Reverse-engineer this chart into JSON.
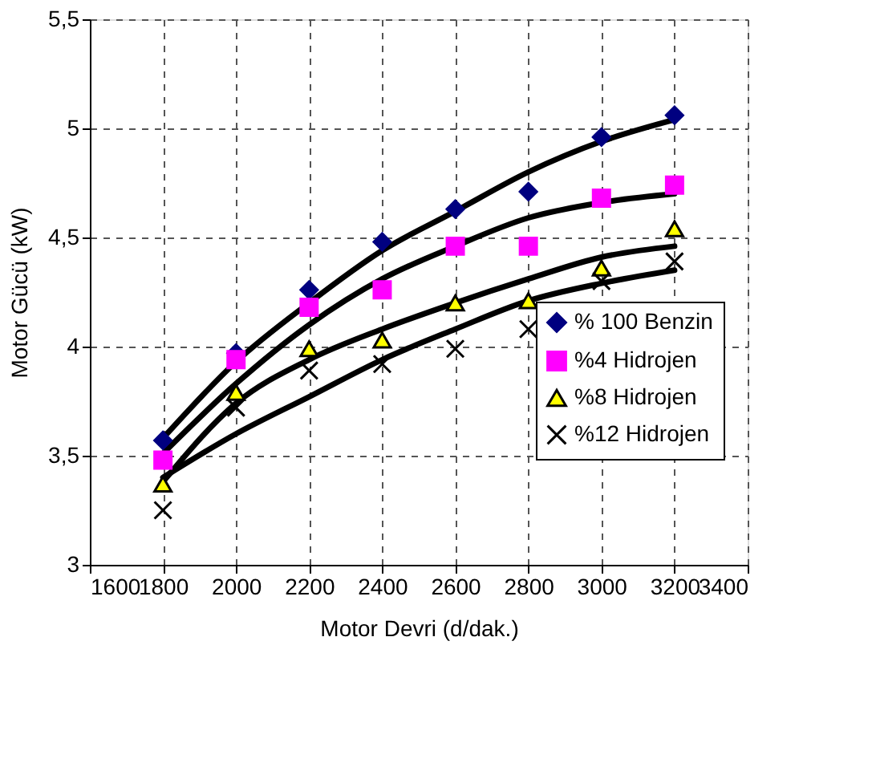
{
  "chart_data": {
    "type": "scatter",
    "xlabel": "Motor Devri (d/dak.)",
    "ylabel": "Motor Gücü (kW)",
    "x": [
      1800,
      2000,
      2200,
      2400,
      2600,
      2800,
      3000,
      3200
    ],
    "series": [
      {
        "name": "% 100 Benzin",
        "color": "#000080",
        "marker": "diamond",
        "values": [
          3.57,
          3.97,
          4.26,
          4.48,
          4.63,
          4.71,
          4.96,
          5.06
        ]
      },
      {
        "name": "%4 Hidrojen",
        "color": "#ff00ff",
        "marker": "square",
        "values": [
          3.48,
          3.94,
          4.18,
          4.26,
          4.46,
          4.46,
          4.68,
          4.74
        ]
      },
      {
        "name": "%8 Hidrojen",
        "color": "#ffff00",
        "marker": "triangle",
        "values": [
          3.37,
          3.79,
          3.99,
          4.03,
          4.2,
          4.21,
          4.36,
          4.54
        ]
      },
      {
        "name": "%12 Hidrojen",
        "color": "#000000",
        "marker": "cross",
        "values": [
          3.25,
          3.72,
          3.89,
          3.92,
          3.99,
          4.08,
          4.3,
          4.39
        ]
      },
      {
        "type": "line",
        "color": "#000000",
        "marker": "none",
        "x": [
          1800,
          2000,
          2200,
          2400,
          2600,
          2800,
          3000,
          3200
        ],
        "values": [
          3.58,
          3.93,
          4.2,
          4.44,
          4.62,
          4.8,
          4.94,
          5.04
        ]
      },
      {
        "type": "line",
        "color": "#000000",
        "marker": "none",
        "x": [
          1800,
          2000,
          2200,
          2400,
          2600,
          2800,
          3000,
          3200
        ],
        "values": [
          3.51,
          3.83,
          4.1,
          4.31,
          4.46,
          4.59,
          4.66,
          4.7
        ]
      },
      {
        "type": "line",
        "color": "#000000",
        "marker": "none",
        "x": [
          1800,
          2000,
          2200,
          2400,
          2600,
          2800,
          3000,
          3200
        ],
        "values": [
          3.38,
          3.74,
          3.94,
          4.08,
          4.2,
          4.31,
          4.41,
          4.46
        ]
      },
      {
        "type": "line",
        "color": "#000000",
        "marker": "none",
        "x": [
          1800,
          2000,
          2200,
          2400,
          2600,
          2800,
          3000,
          3200
        ],
        "values": [
          3.4,
          3.6,
          3.77,
          3.94,
          4.08,
          4.21,
          4.29,
          4.35
        ]
      }
    ],
    "xlim": [
      1600,
      3400
    ],
    "xticks": [
      1600,
      1800,
      2000,
      2200,
      2400,
      2600,
      2800,
      3000,
      3200,
      3400
    ],
    "ylim": [
      3,
      5.5
    ],
    "yticks": [
      3,
      {
        "value": 3.5,
        "label": "3,5"
      },
      4,
      {
        "value": 4.5,
        "label": "4,5"
      },
      5,
      {
        "value": 5.5,
        "label": "5,5"
      }
    ],
    "grid": true,
    "legend": "right"
  }
}
